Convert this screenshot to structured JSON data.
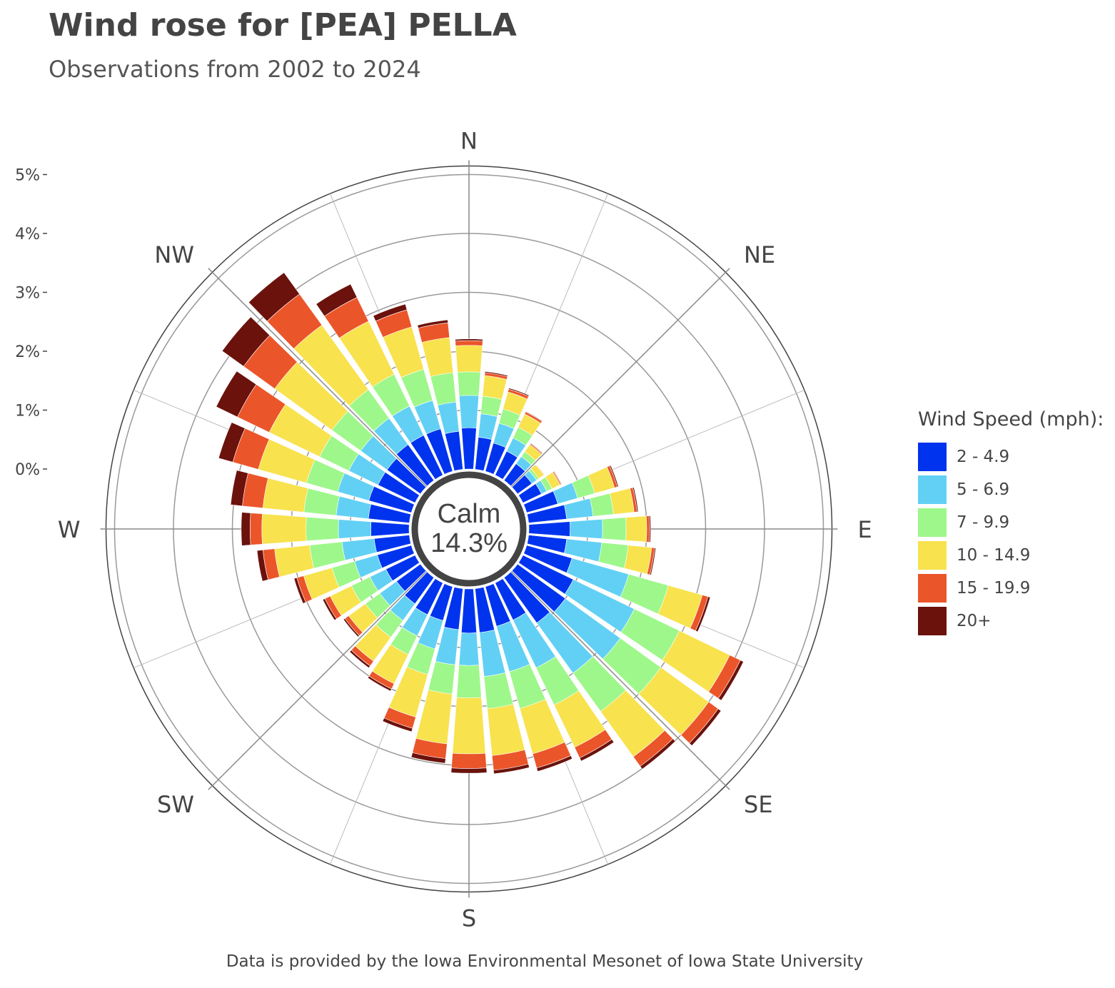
{
  "title": "Wind rose for [PEA] PELLA",
  "subtitle": "Observations from 2002 to 2024",
  "footer": "Data is provided by the Iowa Environmental Mesonet of Iowa State University",
  "legend": {
    "title": "Wind Speed (mph):",
    "items": [
      {
        "label": "2 - 4.9",
        "color": "#0033ee"
      },
      {
        "label": "5 - 6.9",
        "color": "#62d0f4"
      },
      {
        "label": "7 - 9.9",
        "color": "#9ef78a"
      },
      {
        "label": "10 - 14.9",
        "color": "#f8e24e"
      },
      {
        "label": "15 - 19.9",
        "color": "#eb552a"
      },
      {
        "label": "20+",
        "color": "#6b120c"
      }
    ]
  },
  "calm": {
    "label": "Calm",
    "value": "14.3%"
  },
  "chart_data": {
    "type": "bar",
    "subtype": "wind-rose",
    "stacked": true,
    "title": "Wind rose for [PEA] PELLA",
    "subtitle": "Observations from 2002 to 2024",
    "radial_unit": "%",
    "radial_ticks": [
      "0%",
      "1%",
      "2%",
      "3%",
      "4%",
      "5%"
    ],
    "radial_range": [
      0,
      5
    ],
    "direction_labels": [
      "N",
      "NE",
      "E",
      "SE",
      "S",
      "SW",
      "W",
      "NW"
    ],
    "directions": [
      0,
      10,
      20,
      30,
      40,
      50,
      60,
      70,
      80,
      90,
      100,
      110,
      120,
      130,
      140,
      150,
      160,
      170,
      180,
      190,
      200,
      210,
      220,
      230,
      240,
      250,
      260,
      270,
      280,
      290,
      300,
      310,
      320,
      330,
      340,
      350
    ],
    "series": [
      {
        "name": "2 - 4.9",
        "color": "#0033ee",
        "values": [
          0.7,
          0.55,
          0.5,
          0.45,
          0.35,
          0.3,
          0.35,
          0.55,
          0.65,
          0.7,
          0.65,
          0.8,
          0.95,
          1.0,
          0.95,
          0.7,
          0.7,
          0.75,
          0.75,
          0.7,
          0.6,
          0.6,
          0.55,
          0.5,
          0.55,
          0.6,
          0.6,
          0.65,
          0.7,
          0.75,
          0.7,
          0.7,
          0.75,
          0.75,
          0.75,
          0.65
        ]
      },
      {
        "name": "5 - 6.9",
        "color": "#62d0f4",
        "values": [
          0.55,
          0.4,
          0.35,
          0.25,
          0.15,
          0.1,
          0.1,
          0.35,
          0.45,
          0.55,
          0.6,
          1.0,
          1.15,
          1.15,
          1.05,
          0.9,
          0.8,
          0.75,
          0.55,
          0.6,
          0.5,
          0.4,
          0.35,
          0.35,
          0.3,
          0.4,
          0.55,
          0.55,
          0.55,
          0.55,
          0.55,
          0.55,
          0.55,
          0.55,
          0.5,
          0.5
        ]
      },
      {
        "name": "7 - 9.9",
        "color": "#9ef78a",
        "values": [
          0.4,
          0.3,
          0.25,
          0.2,
          0.1,
          0.05,
          0.1,
          0.3,
          0.35,
          0.4,
          0.45,
          0.7,
          0.85,
          0.85,
          0.8,
          0.7,
          0.65,
          0.55,
          0.55,
          0.5,
          0.45,
          0.35,
          0.35,
          0.3,
          0.35,
          0.4,
          0.55,
          0.55,
          0.55,
          0.55,
          0.55,
          0.6,
          0.6,
          0.6,
          0.55,
          0.5
        ]
      },
      {
        "name": "10 - 14.9",
        "color": "#f8e24e",
        "values": [
          0.45,
          0.35,
          0.3,
          0.25,
          0.15,
          0.1,
          0.15,
          0.35,
          0.35,
          0.35,
          0.4,
          0.6,
          0.95,
          1.0,
          0.95,
          0.8,
          0.8,
          0.8,
          0.95,
          0.85,
          0.75,
          0.55,
          0.5,
          0.35,
          0.4,
          0.5,
          0.6,
          0.75,
          0.7,
          0.85,
          0.95,
          1.2,
          1.35,
          1.0,
          0.75,
          0.6
        ]
      },
      {
        "name": "15 - 19.9",
        "color": "#eb552a",
        "values": [
          0.08,
          0.05,
          0.05,
          0.04,
          0.02,
          0.01,
          0.02,
          0.05,
          0.05,
          0.05,
          0.05,
          0.1,
          0.2,
          0.2,
          0.2,
          0.2,
          0.25,
          0.25,
          0.25,
          0.25,
          0.2,
          0.1,
          0.1,
          0.08,
          0.1,
          0.12,
          0.2,
          0.2,
          0.35,
          0.45,
          0.6,
          0.65,
          0.65,
          0.45,
          0.3,
          0.25
        ]
      },
      {
        "name": "20+",
        "color": "#6b120c",
        "values": [
          0.03,
          0.02,
          0.02,
          0.01,
          0.01,
          0.0,
          0.01,
          0.02,
          0.02,
          0.02,
          0.02,
          0.04,
          0.06,
          0.06,
          0.06,
          0.06,
          0.06,
          0.06,
          0.08,
          0.08,
          0.06,
          0.04,
          0.04,
          0.03,
          0.04,
          0.05,
          0.1,
          0.15,
          0.2,
          0.25,
          0.4,
          0.45,
          0.45,
          0.25,
          0.1,
          0.05
        ]
      }
    ],
    "legend_position": "right",
    "grid": true
  }
}
